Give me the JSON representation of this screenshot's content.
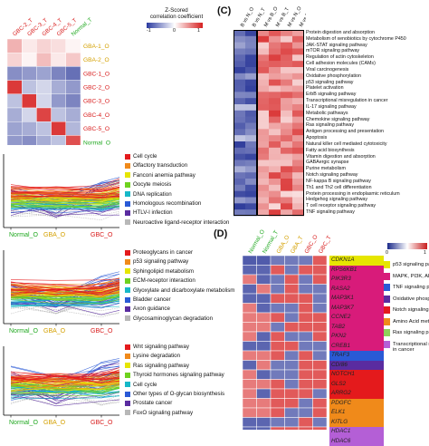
{
  "panel_a": {
    "col_labels": [
      "GBC-2_T",
      "GBC-3_T",
      "GBC-4_T",
      "GBC-5_T",
      "Normal_T"
    ],
    "row_labels": [
      "GBA-1_O",
      "GBA-2_O",
      "GBC-1_O",
      "GBC-2_O",
      "GBC-3_O",
      "GBC-4_O",
      "GBC-5_O",
      "Normal_O"
    ],
    "row_colors": [
      "#d4a000",
      "#d4a000",
      "#d81b1b",
      "#d81b1b",
      "#d81b1b",
      "#d81b1b",
      "#d81b1b",
      "#1fa81f"
    ],
    "col_colors": [
      "#d81b1b",
      "#d81b1b",
      "#d81b1b",
      "#d81b1b",
      "#1fa81f"
    ],
    "legend_title_1": "Z-Scored",
    "legend_title_2": "correlation coefficient",
    "legend_ticks": [
      "-1",
      "0",
      "1"
    ]
  },
  "line_panels": [
    {
      "x_labels": [
        "Normal_O",
        "GBA_O",
        "GBC_O"
      ],
      "x_colors": [
        "#1fa81f",
        "#d4a000",
        "#d81b1b"
      ],
      "legend": [
        {
          "label": "Cell cycle",
          "color": "#e41a1c"
        },
        {
          "label": "Olfactory transduction",
          "color": "#f08a1a"
        },
        {
          "label": "Fanconi anemia pathway",
          "color": "#e6e600"
        },
        {
          "label": "Oocyte meiosis",
          "color": "#6fd21e"
        },
        {
          "label": "DNA replication",
          "color": "#17b8c8"
        },
        {
          "label": "Homologous recombination",
          "color": "#2a5ad6"
        },
        {
          "label": "HTLV-I infection",
          "color": "#5a2ca0"
        },
        {
          "label": "Neuroactive ligand-receptor interaction",
          "color": "#b8b8b8"
        }
      ]
    },
    {
      "x_labels": [
        "Normal_O",
        "GBA_O",
        "GBC_O"
      ],
      "x_colors": [
        "#1fa81f",
        "#d4a000",
        "#d81b1b"
      ],
      "legend": [
        {
          "label": "Proteoglycans in cancer",
          "color": "#e41a1c"
        },
        {
          "label": "p53 signaling pathway",
          "color": "#f08a1a"
        },
        {
          "label": "Sphingolipid metabolism",
          "color": "#e6e600"
        },
        {
          "label": "ECM-receptor interaction",
          "color": "#6fd21e"
        },
        {
          "label": "Glyoxylate and dicarboxylate metabolism",
          "color": "#17b8c8"
        },
        {
          "label": "Bladder cancer",
          "color": "#2a5ad6"
        },
        {
          "label": "Axon guidance",
          "color": "#5a2ca0"
        },
        {
          "label": "Glycosaminoglycan degradation",
          "color": "#b8b8b8"
        }
      ]
    },
    {
      "x_labels": [
        "Normal_O",
        "GBA_O",
        "GBC_O"
      ],
      "x_colors": [
        "#1fa81f",
        "#d4a000",
        "#d81b1b"
      ],
      "legend": [
        {
          "label": "Wnt signaling pathway",
          "color": "#e41a1c"
        },
        {
          "label": "Lysine degradation",
          "color": "#f08a1a"
        },
        {
          "label": "Ras signaling pathway",
          "color": "#e6e600"
        },
        {
          "label": "Thyroid hormones signaling pathway",
          "color": "#6fd21e"
        },
        {
          "label": "Cell cycle",
          "color": "#17b8c8"
        },
        {
          "label": "Other types of O-glycan biosynthesis",
          "color": "#2a5ad6"
        },
        {
          "label": "Prostate cancer",
          "color": "#5a2ca0"
        },
        {
          "label": "FoxO signaling pathway",
          "color": "#b8b8b8"
        }
      ]
    }
  ],
  "panel_c": {
    "letter": "(C)",
    "col_labels": [
      "B vs N_O",
      "B vs N_T",
      "M vs B_O",
      "M vs B_T",
      "M vs N_O",
      "M vs N_T"
    ],
    "pathways": [
      "Protein digestion and absorption",
      "Metabolism of xenobiotics by cytochrome P450",
      "JAK-STAT signaling pathway",
      "mTOR signaling pathway",
      "Regulation of actin cytoskeleton",
      "Cell adhesion molecules (CAMs)",
      "Viral carcinogenesis",
      "Oxidative phosphorylation",
      "p53 signaling pathway",
      "Platelet activation",
      "ErbB signaling pathway",
      "Transcriptional misregulation in cancer",
      "IL-17 signaling pathway",
      "Metabolic pathways",
      "Chemokine signaling pathway",
      "Ras signaling pathway",
      "Antigen processing and presentation",
      "Apoptosis",
      "Natural killer cell mediated cytotoxicity",
      "Fatty acid biosynthesis",
      "Vitamin digestion and absorption",
      "GABAergic synapse",
      "Purine metabolism",
      "Notch signaling pathway",
      "NF-kappa B signaling pathway",
      "Th1 and Th2 cell differentiation",
      "Protein processing in endoplasmic reticulum",
      "Hedgehog signaling pathway",
      "T cell receptor signaling pathway",
      "TNF signaling pathway"
    ]
  },
  "panel_d": {
    "letter": "(D)",
    "col_labels": [
      "Normal_O",
      "Normal_T",
      "GBA_O",
      "GBA_T",
      "GBC_O",
      "GBC_T"
    ],
    "col_colors": [
      "#1fa81f",
      "#1fa81f",
      "#d4a000",
      "#d4a000",
      "#d81b1b",
      "#d81b1b"
    ],
    "genes": [
      "CDKN1A",
      "RPS6KB1",
      "PIK3R3",
      "RASA2",
      "MAP3K1",
      "MAP3K7",
      "CCNE2",
      "TAB2",
      "PKN2",
      "CREB1",
      "TRAF3",
      "CD/86",
      "NOTCH1",
      "GLS2",
      "ARRG2",
      "PDGFC",
      "ELK1",
      "KITLG",
      "HDAC1",
      "HDAC6"
    ],
    "gene_colors": [
      "#e6e600",
      "#d81b7a",
      "#d81b7a",
      "#d81b7a",
      "#d81b7a",
      "#d81b7a",
      "#d81b7a",
      "#d81b7a",
      "#d81b7a",
      "#d81b7a",
      "#2a5ad6",
      "#5a2ca0",
      "#e41a1c",
      "#e41a1c",
      "#e41a1c",
      "#f08a1a",
      "#f08a1a",
      "#f08a1a",
      "#b45fd6",
      "#b45fd6"
    ],
    "legend_ticks": [
      "0",
      "1"
    ],
    "categories": [
      {
        "label": "p53 signaling pa",
        "color": "#e6e600"
      },
      {
        "label": "MAPK, PI3K, AK",
        "color": "#d81b7a"
      },
      {
        "label": "TNF signaling pa",
        "color": "#2a5ad6"
      },
      {
        "label": "Oxidative phospl",
        "color": "#5a2ca0"
      },
      {
        "label": "Notch signaling p",
        "color": "#e41a1c"
      },
      {
        "label": "Amino Acid meta",
        "color": "#f08a1a"
      },
      {
        "label": "Ras signaling pa",
        "color": "#8fd15a"
      },
      {
        "label": "Transcriptional m",
        "color": "#b45fd6"
      }
    ],
    "category_tail": "in cancer"
  }
}
